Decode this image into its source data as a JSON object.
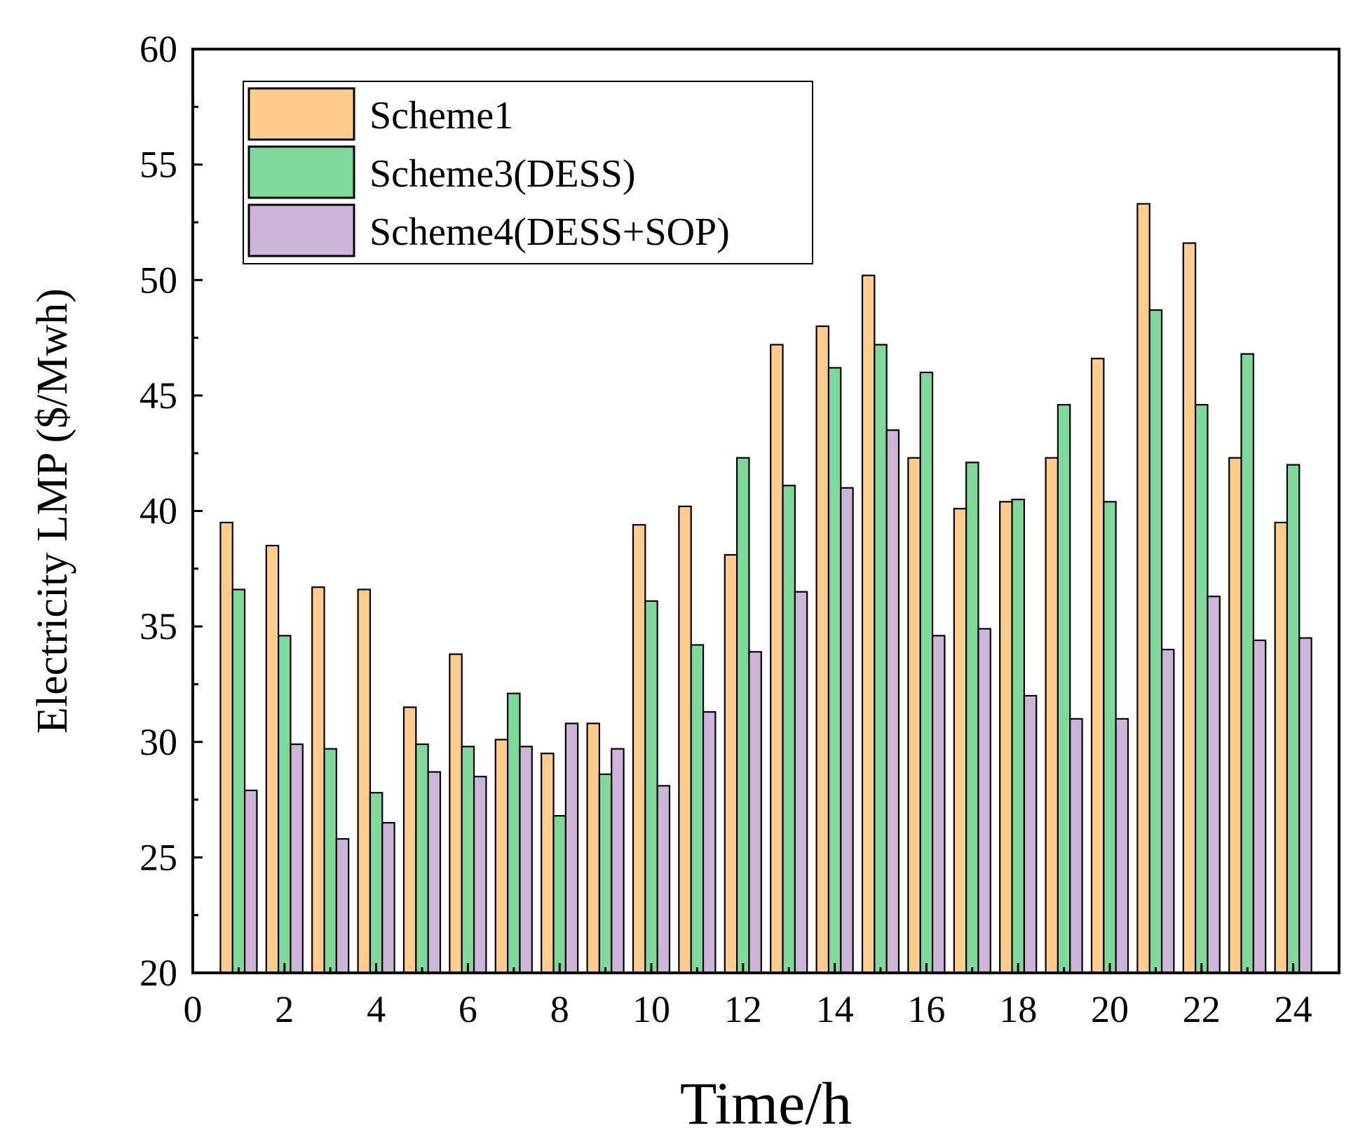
{
  "chart_data": {
    "type": "bar",
    "title": "",
    "xlabel": "Time/h",
    "ylabel": "Electricity LMP ($/Mwh)",
    "xlim": [
      0,
      25
    ],
    "ylim": [
      20,
      60
    ],
    "xticks": [
      "0",
      "2",
      "4",
      "6",
      "8",
      "10",
      "12",
      "14",
      "16",
      "18",
      "20",
      "22",
      "24"
    ],
    "yticks": [
      "20",
      "25",
      "30",
      "35",
      "40",
      "45",
      "50",
      "55",
      "60"
    ],
    "legend_position": "top-left",
    "grid": false,
    "categories": [
      1,
      2,
      3,
      4,
      5,
      6,
      7,
      8,
      9,
      10,
      11,
      12,
      13,
      14,
      15,
      16,
      17,
      18,
      19,
      20,
      21,
      22,
      23,
      24
    ],
    "series": [
      {
        "name": "Scheme1",
        "color": "#FFCC8C",
        "values": [
          39.5,
          38.5,
          36.7,
          36.6,
          31.5,
          33.8,
          30.1,
          29.5,
          30.8,
          39.4,
          40.2,
          38.1,
          47.2,
          48.0,
          50.2,
          42.3,
          40.1,
          40.4,
          42.3,
          46.6,
          53.3,
          51.6,
          42.3,
          39.5
        ]
      },
      {
        "name": "Scheme3(DESS)",
        "color": "#7ED99A",
        "values": [
          36.6,
          34.6,
          29.7,
          27.8,
          29.9,
          29.8,
          32.1,
          26.8,
          28.6,
          36.1,
          34.2,
          42.3,
          41.1,
          46.2,
          47.2,
          46.0,
          42.1,
          40.5,
          44.6,
          40.4,
          48.7,
          44.6,
          46.8,
          42.0
        ]
      },
      {
        "name": "Scheme4(DESS+SOP)",
        "color": "#CDB5D9",
        "values": [
          27.9,
          29.9,
          25.8,
          26.5,
          28.7,
          28.5,
          29.8,
          30.8,
          29.7,
          28.1,
          31.3,
          33.9,
          36.5,
          41.0,
          43.5,
          34.6,
          34.9,
          32.0,
          31.0,
          31.0,
          34.0,
          36.3,
          34.4,
          34.5
        ]
      }
    ]
  }
}
